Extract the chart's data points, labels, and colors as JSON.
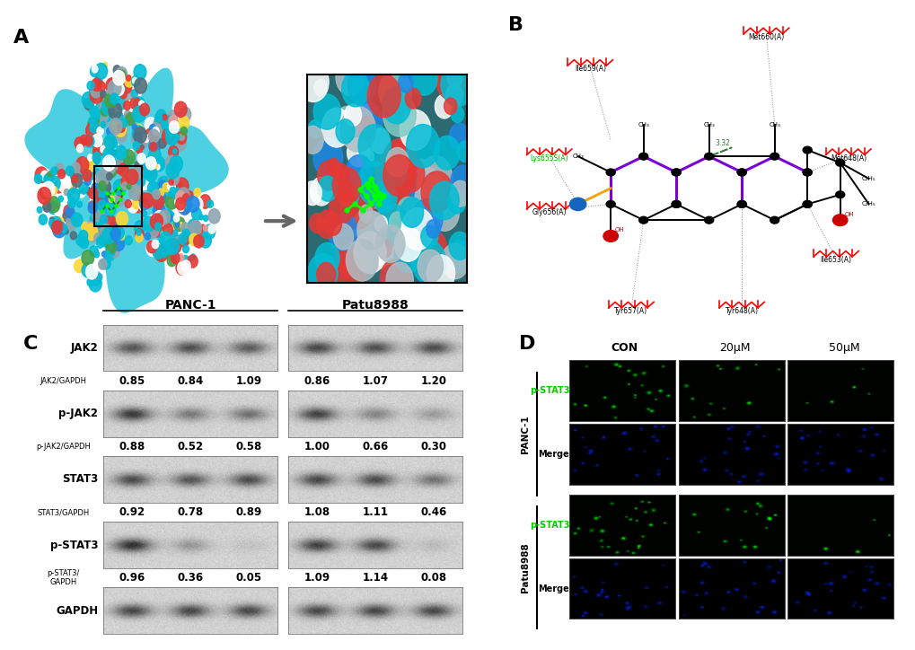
{
  "panel_labels": [
    "A",
    "B",
    "C",
    "D"
  ],
  "panel_label_fontsize": 16,
  "panel_label_fontweight": "bold",
  "c_title_PANC1": "PANC-1",
  "c_title_Patu": "Patu8988",
  "c_col_labels": [
    "CON",
    "20μM",
    "50μM"
  ],
  "panc1_vals": {
    "JAK2": [
      0.85,
      0.84,
      1.09
    ],
    "p-JAK2": [
      0.88,
      0.52,
      0.58
    ],
    "STAT3": [
      0.92,
      0.78,
      0.89
    ],
    "p-STAT3": [
      0.96,
      0.36,
      0.05
    ]
  },
  "patu_vals": {
    "JAK2": [
      0.86,
      1.07,
      1.2
    ],
    "p-JAK2": [
      1.0,
      0.66,
      0.3
    ],
    "STAT3": [
      1.08,
      1.11,
      0.46
    ],
    "p-STAT3": [
      1.09,
      1.14,
      0.08
    ]
  },
  "d_col_labels": [
    "CON",
    "20μM",
    "50μM"
  ],
  "d_cell_labels": [
    "PANC-1",
    "Patu8988"
  ],
  "bg_color": "#ffffff",
  "text_color": "#000000"
}
